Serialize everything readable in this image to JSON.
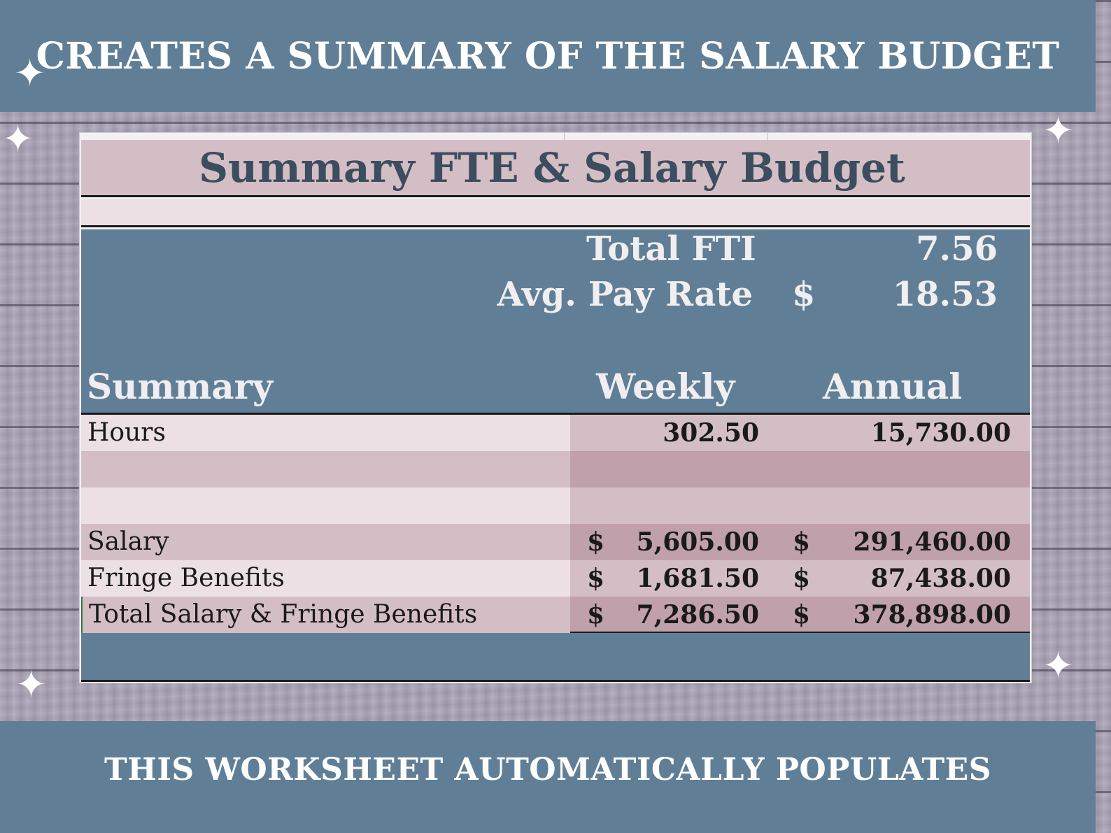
{
  "top_banner": "CREATES A SUMMARY OF THE SALARY BUDGET",
  "bottom_banner": "THIS WORKSHEET AUTOMATICALLY POPULATES",
  "sheet": {
    "title": "Summary FTE & Salary Budget",
    "total_fte_label": "Total FTI",
    "total_fte_value": "7.56",
    "avg_pay_label": "Avg. Pay Rate",
    "avg_pay_currency": "$",
    "avg_pay_value": "18.53",
    "headers": {
      "summary": "Summary",
      "weekly": "Weekly",
      "annual": "Annual"
    },
    "rows": [
      {
        "label": "Hours",
        "weekly_currency": "",
        "weekly": "302.50",
        "annual_currency": "",
        "annual": "15,730.00"
      },
      {
        "label": "",
        "weekly_currency": "",
        "weekly": "",
        "annual_currency": "",
        "annual": ""
      },
      {
        "label": "",
        "weekly_currency": "",
        "weekly": "",
        "annual_currency": "",
        "annual": ""
      },
      {
        "label": "Salary",
        "weekly_currency": "$",
        "weekly": "5,605.00",
        "annual_currency": "$",
        "annual": "291,460.00"
      },
      {
        "label": "Fringe Benefits",
        "weekly_currency": "$",
        "weekly": "1,681.50",
        "annual_currency": "$",
        "annual": "87,438.00"
      },
      {
        "label": "Total Salary & Fringe Benefits",
        "weekly_currency": "$",
        "weekly": "7,286.50",
        "annual_currency": "$",
        "annual": "378,898.00"
      }
    ]
  },
  "colors": {
    "banner": "#607f96",
    "title_fill": "#d4bec6",
    "row_light": "#ede0e4",
    "row_mid": "#d4bec6",
    "row_dark": "#bfa0ab",
    "text_dark": "#3b4d5e"
  },
  "icons": [
    "sparkle-icon"
  ]
}
